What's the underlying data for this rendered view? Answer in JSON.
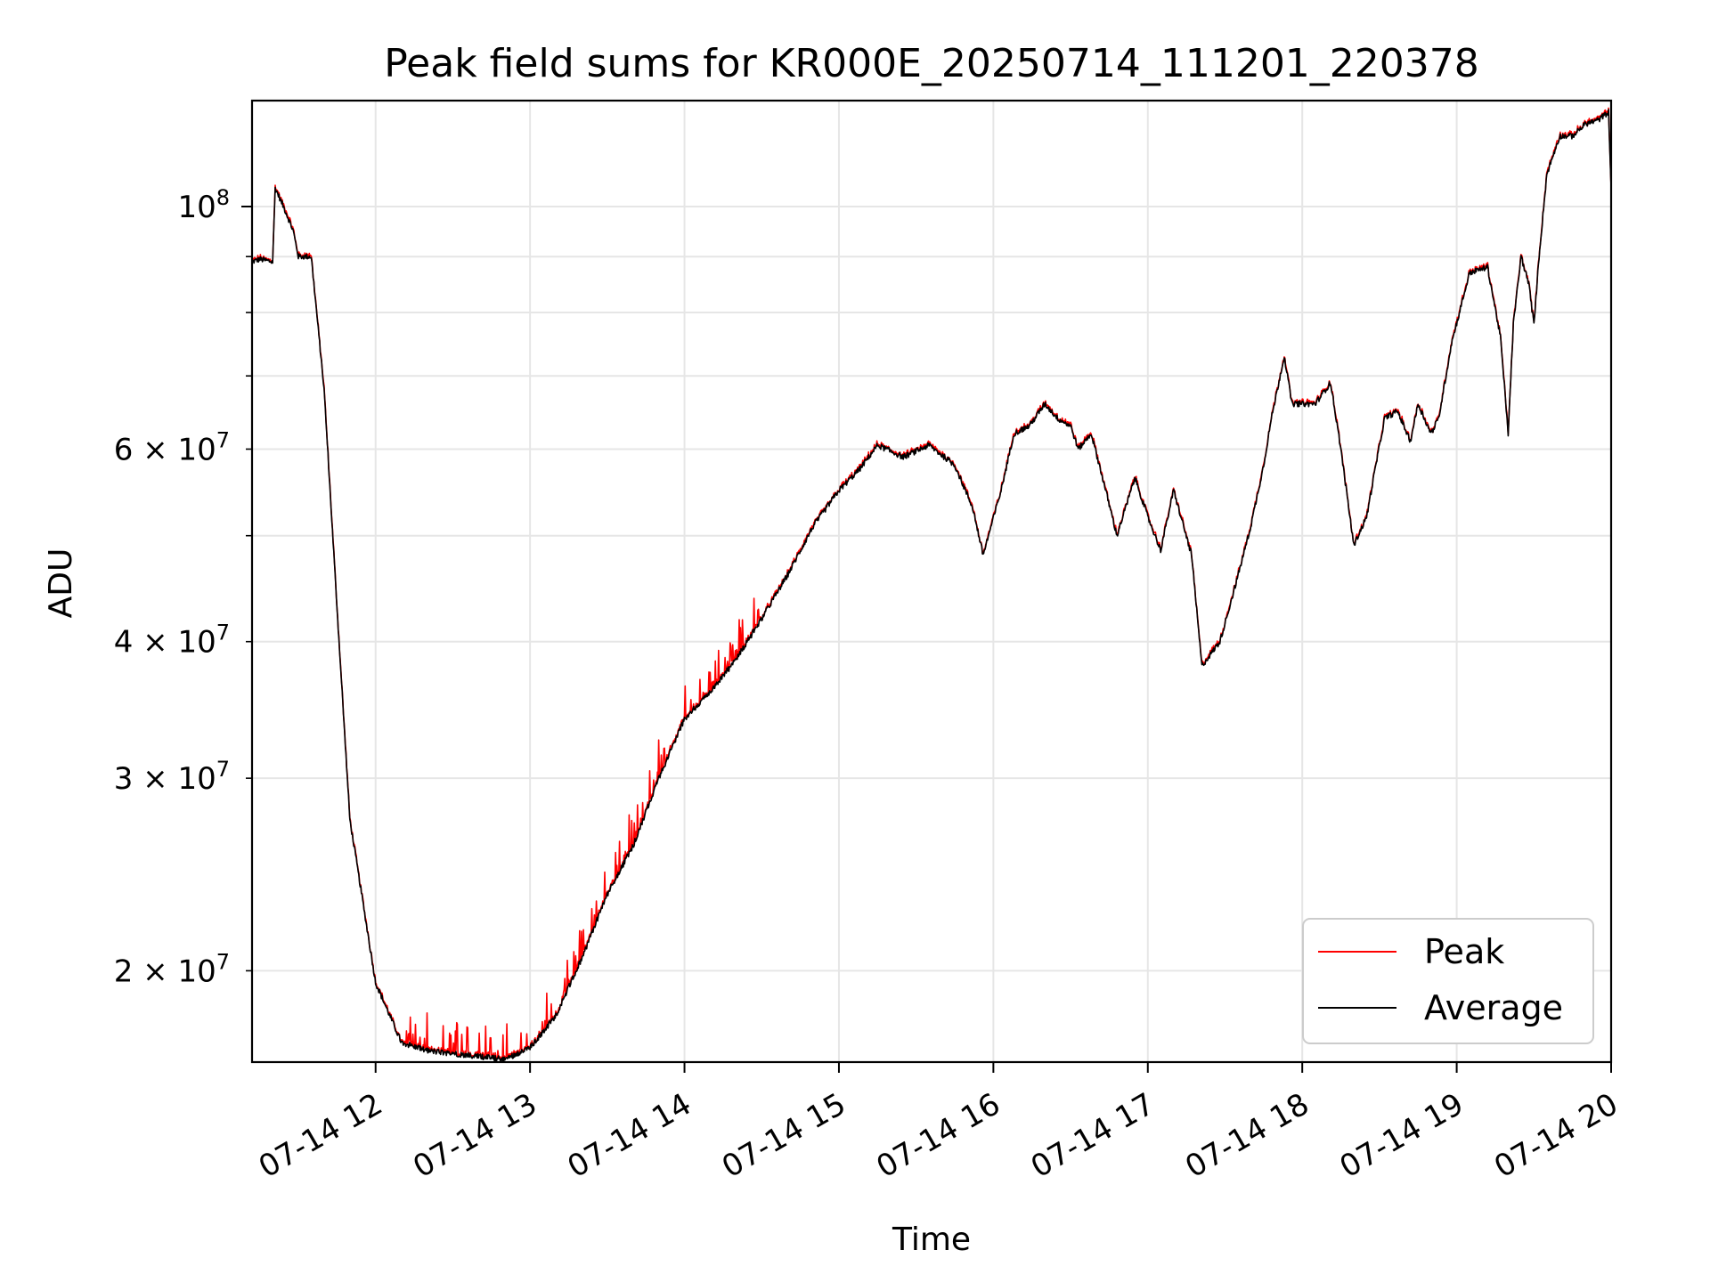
{
  "chart_data": {
    "type": "line",
    "title": "Peak field sums for KR000E_20250714_111201_220378",
    "xlabel": "Time",
    "ylabel": "ADU",
    "yscale": "log",
    "ylim": [
      16500000,
      125000000
    ],
    "xlim": [
      "07-14 11:12",
      "07-14 20:00"
    ],
    "x_tick_labels": [
      "07-14 12",
      "07-14 13",
      "07-14 14",
      "07-14 15",
      "07-14 16",
      "07-14 17",
      "07-14 18",
      "07-14 19",
      "07-14 20"
    ],
    "x_tick_times": [
      "07-14 12:00",
      "07-14 13:00",
      "07-14 14:00",
      "07-14 15:00",
      "07-14 16:00",
      "07-14 17:00",
      "07-14 18:00",
      "07-14 19:00",
      "07-14 20:00"
    ],
    "y_ticks_major": [
      {
        "value": 100000000,
        "label": "10^8"
      }
    ],
    "y_ticks_minor": [
      {
        "value": 20000000,
        "label": "2 × 10^7"
      },
      {
        "value": 30000000,
        "label": "3 × 10^7"
      },
      {
        "value": 40000000,
        "label": "4 × 10^7"
      },
      {
        "value": 50000000,
        "label": ""
      },
      {
        "value": 60000000,
        "label": "6 × 10^7"
      },
      {
        "value": 70000000,
        "label": ""
      },
      {
        "value": 80000000,
        "label": ""
      },
      {
        "value": 90000000,
        "label": ""
      }
    ],
    "grid": true,
    "legend_position": "lower-right",
    "series": [
      {
        "name": "Peak",
        "color": "#ff0000"
      },
      {
        "name": "Average",
        "color": "#000000"
      }
    ],
    "x": [
      "07-14 11:12",
      "07-14 11:15",
      "07-14 11:20",
      "07-14 11:21",
      "07-14 11:25",
      "07-14 11:28",
      "07-14 11:30",
      "07-14 11:35",
      "07-14 11:40",
      "07-14 11:45",
      "07-14 11:50",
      "07-14 12:00",
      "07-14 12:10",
      "07-14 12:20",
      "07-14 12:30",
      "07-14 12:40",
      "07-14 12:50",
      "07-14 13:00",
      "07-14 13:10",
      "07-14 13:20",
      "07-14 13:30",
      "07-14 13:40",
      "07-14 13:50",
      "07-14 14:00",
      "07-14 14:10",
      "07-14 14:20",
      "07-14 14:30",
      "07-14 14:40",
      "07-14 14:50",
      "07-14 15:00",
      "07-14 15:08",
      "07-14 15:15",
      "07-14 15:25",
      "07-14 15:35",
      "07-14 15:45",
      "07-14 15:52",
      "07-14 15:56",
      "07-14 16:03",
      "07-14 16:08",
      "07-14 16:14",
      "07-14 16:20",
      "07-14 16:25",
      "07-14 16:30",
      "07-14 16:33",
      "07-14 16:38",
      "07-14 16:42",
      "07-14 16:48",
      "07-14 16:55",
      "07-14 17:00",
      "07-14 17:05",
      "07-14 17:10",
      "07-14 17:17",
      "07-14 17:21",
      "07-14 17:28",
      "07-14 17:34",
      "07-14 17:40",
      "07-14 17:45",
      "07-14 17:48",
      "07-14 17:53",
      "07-14 17:56",
      "07-14 18:05",
      "07-14 18:11",
      "07-14 18:15",
      "07-14 18:20",
      "07-14 18:25",
      "07-14 18:28",
      "07-14 18:32",
      "07-14 18:37",
      "07-14 18:42",
      "07-14 18:45",
      "07-14 18:50",
      "07-14 18:53",
      "07-14 18:58",
      "07-14 19:05",
      "07-14 19:12",
      "07-14 19:17",
      "07-14 19:20",
      "07-14 19:22",
      "07-14 19:25",
      "07-14 19:28",
      "07-14 19:30",
      "07-14 19:32",
      "07-14 19:35",
      "07-14 19:40",
      "07-14 19:45",
      "07-14 19:50",
      "07-14 19:55",
      "07-14 19:59",
      "07-14 20:00"
    ],
    "values": [
      89000000,
      89500000,
      89000000,
      104000000,
      99000000,
      95000000,
      90000000,
      90000000,
      68000000,
      43000000,
      27500000,
      19500000,
      17200000,
      16900000,
      16800000,
      16700000,
      16600000,
      17000000,
      18200000,
      20500000,
      23500000,
      26000000,
      30000000,
      34000000,
      36000000,
      38500000,
      42000000,
      46000000,
      51000000,
      55000000,
      57500000,
      60500000,
      59000000,
      60500000,
      58000000,
      53000000,
      48000000,
      55000000,
      62000000,
      63000000,
      66000000,
      64000000,
      63000000,
      60000000,
      62000000,
      57000000,
      50000000,
      56500000,
      52000000,
      48500000,
      55000000,
      48000000,
      38000000,
      40000000,
      45000000,
      51000000,
      58000000,
      64000000,
      73000000,
      66000000,
      66000000,
      69000000,
      60000000,
      49000000,
      52000000,
      57000000,
      64000000,
      65000000,
      61000000,
      66000000,
      62000000,
      64000000,
      75000000,
      87000000,
      88000000,
      76000000,
      62000000,
      78000000,
      90000000,
      85000000,
      78000000,
      90000000,
      107000000,
      116000000,
      116000000,
      119000000,
      120000000,
      122000000,
      104000000
    ],
    "peak_overshoot": [
      {
        "from": "07-14 12:10",
        "to": "07-14 14:30",
        "max_ratio": 1.08
      }
    ]
  }
}
